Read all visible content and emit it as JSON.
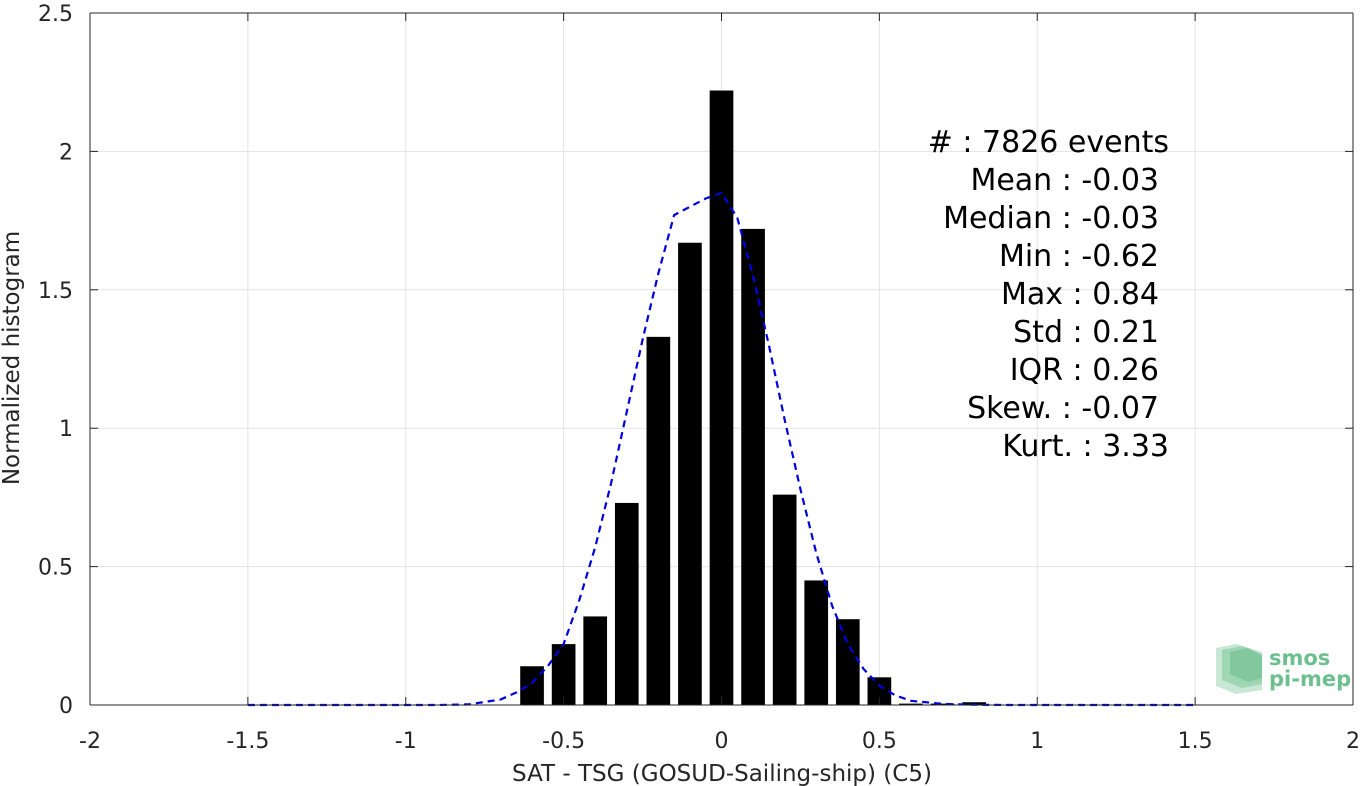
{
  "chart_data": {
    "type": "bar",
    "xlabel": "SAT - TSG (GOSUD-Sailing-ship) (C5)",
    "ylabel": "Normalized histogram",
    "xlim": [
      -2,
      2
    ],
    "ylim": [
      0,
      2.5
    ],
    "xticks": [
      -2,
      -1.5,
      -1,
      -0.5,
      0,
      0.5,
      1,
      1.5,
      2
    ],
    "xtick_labels": [
      "-2",
      "-1.5",
      "-1",
      "-0.5",
      "0",
      "0.5",
      "1",
      "1.5",
      "2"
    ],
    "yticks": [
      0,
      0.5,
      1,
      1.5,
      2,
      2.5
    ],
    "ytick_labels": [
      "0",
      "0.5",
      "1",
      "1.5",
      "2",
      "2.5"
    ],
    "grid": true,
    "bar_color": "#000000",
    "bars": {
      "x": [
        -0.6,
        -0.5,
        -0.4,
        -0.3,
        -0.2,
        -0.1,
        0.0,
        0.1,
        0.2,
        0.3,
        0.4,
        0.5,
        0.6,
        0.7,
        0.8
      ],
      "values": [
        0.14,
        0.22,
        0.32,
        0.73,
        1.33,
        1.67,
        2.22,
        1.72,
        0.76,
        0.45,
        0.31,
        0.1,
        0.005,
        0.005,
        0.01
      ]
    },
    "fit_line": {
      "style": "dashed",
      "color": "#0000dd",
      "x": [
        -1.5,
        -1.4,
        -1.3,
        -1.2,
        -1.1,
        -1.0,
        -0.9,
        -0.8,
        -0.7,
        -0.65,
        -0.6,
        -0.55,
        -0.5,
        -0.45,
        -0.4,
        -0.35,
        -0.3,
        -0.25,
        -0.2,
        -0.15,
        -0.1,
        -0.05,
        0.0,
        0.05,
        0.1,
        0.15,
        0.2,
        0.25,
        0.3,
        0.35,
        0.4,
        0.45,
        0.5,
        0.55,
        0.6,
        0.7,
        0.8,
        0.9,
        1.0,
        1.1,
        1.2,
        1.3,
        1.4,
        1.5
      ],
      "y": [
        0,
        0,
        0,
        0,
        0,
        0,
        0,
        0.002,
        0.02,
        0.045,
        0.08,
        0.14,
        0.22,
        0.38,
        0.57,
        0.8,
        1.06,
        1.32,
        1.56,
        1.77,
        1.8,
        1.83,
        1.85,
        1.76,
        1.55,
        1.3,
        1.03,
        0.78,
        0.55,
        0.36,
        0.22,
        0.13,
        0.07,
        0.035,
        0.015,
        0.004,
        0.001,
        0,
        0,
        0,
        0,
        0,
        0,
        0
      ]
    },
    "stats": [
      {
        "label": "#  : 7826 events",
        "indent": false
      },
      {
        "label": "Mean : -0.03",
        "indent": true
      },
      {
        "label": "Median : -0.03",
        "indent": true
      },
      {
        "label": "Min : -0.62",
        "indent": true
      },
      {
        "label": "Max : 0.84",
        "indent": true
      },
      {
        "label": "Std : 0.21",
        "indent": true
      },
      {
        "label": "IQR : 0.26",
        "indent": true
      },
      {
        "label": "Skew. : -0.07",
        "indent": true
      },
      {
        "label": "Kurt. : 3.33",
        "indent": false
      }
    ]
  },
  "logo": {
    "line1": "smos",
    "line2": "pi-mep",
    "color": "#6cbf8e"
  }
}
